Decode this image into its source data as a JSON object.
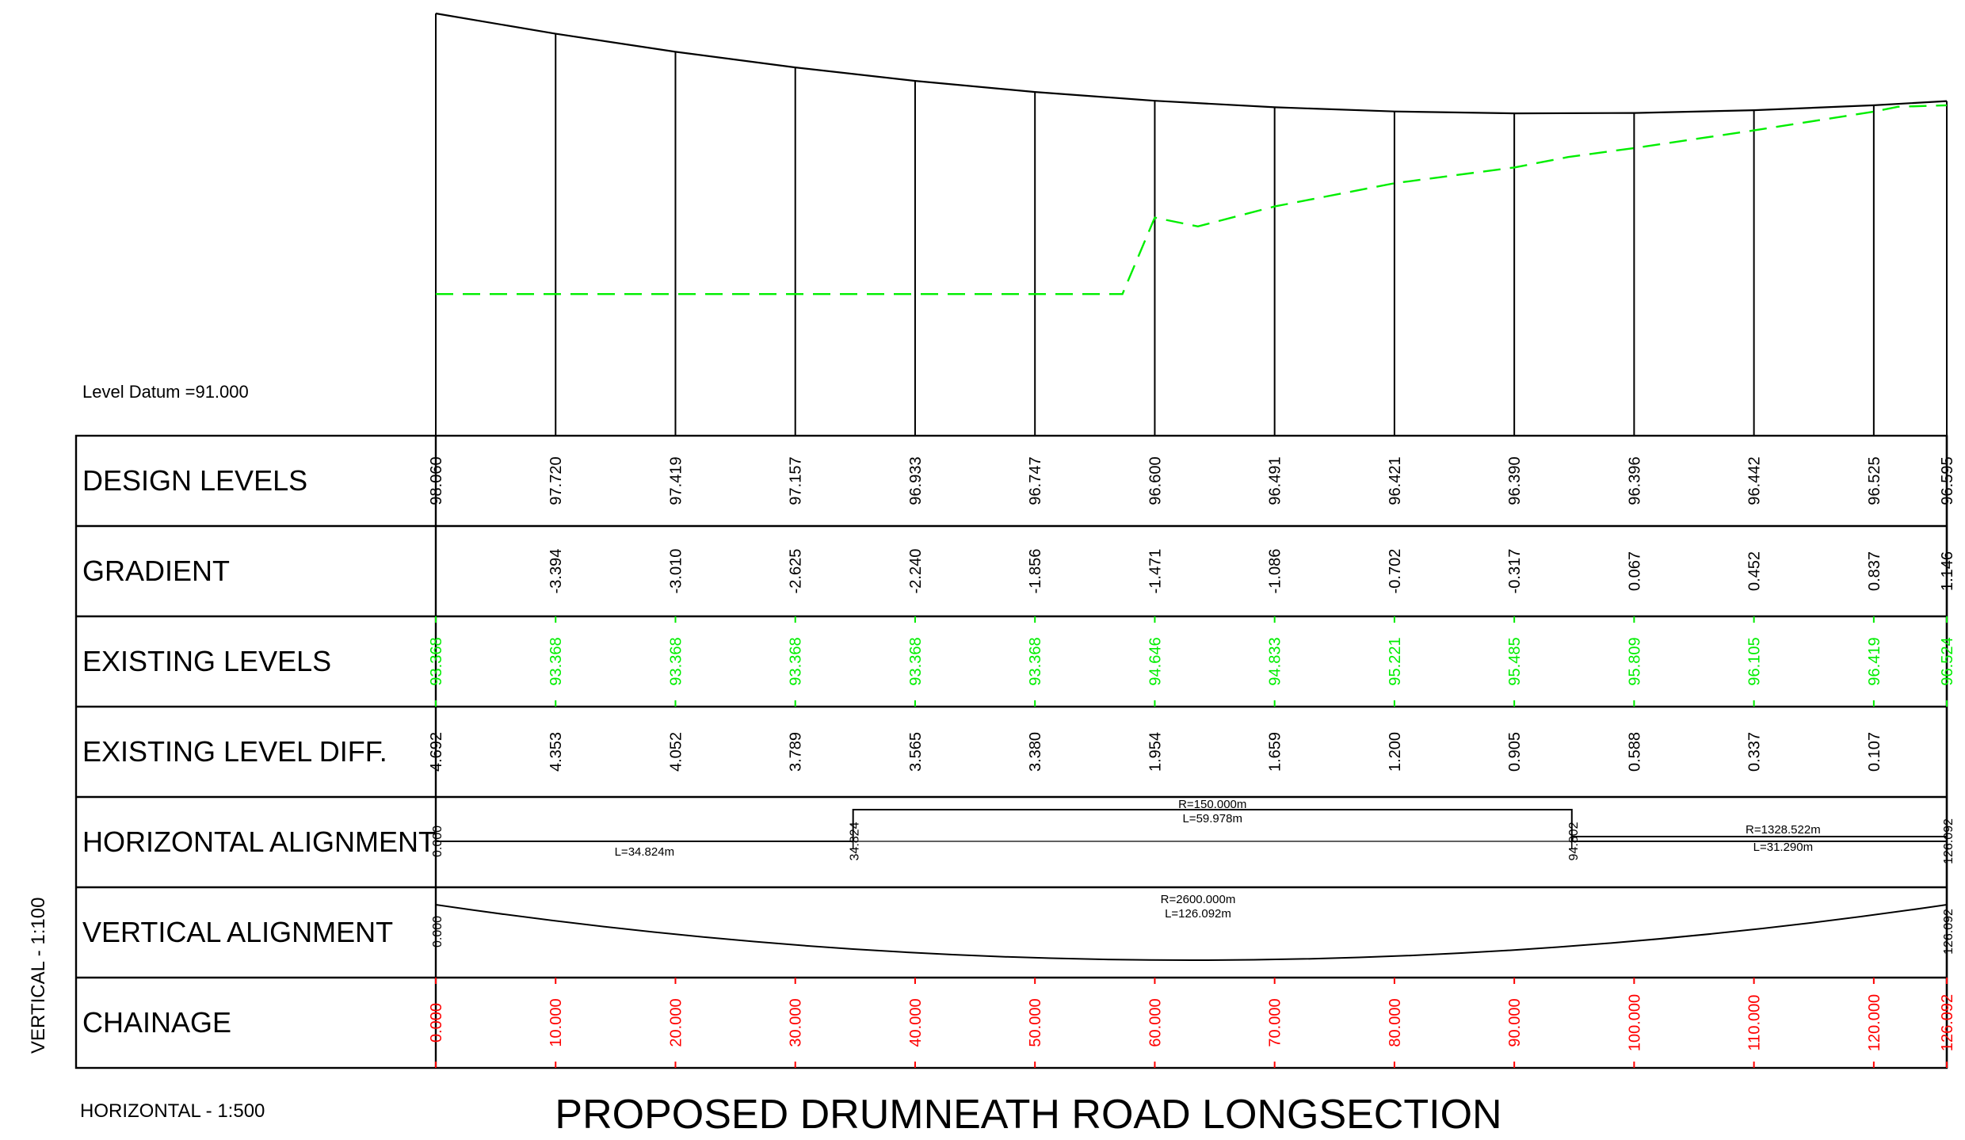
{
  "title": "PROPOSED DRUMNEATH ROAD LONGSECTION",
  "level_datum": "Level Datum =91.000",
  "scale_vertical": "VERTICAL - 1:100",
  "scale_horizontal": "HORIZONTAL - 1:500",
  "colors": {
    "line": "#000000",
    "existing": "#00ee00",
    "chainage": "#ff0000"
  },
  "rows": [
    {
      "key": "design",
      "label": "DESIGN LEVELS"
    },
    {
      "key": "gradient",
      "label": "GRADIENT"
    },
    {
      "key": "existing",
      "label": "EXISTING LEVELS"
    },
    {
      "key": "diff",
      "label": "EXISTING LEVEL DIFF."
    },
    {
      "key": "halign",
      "label": "HORIZONTAL ALIGNMENT"
    },
    {
      "key": "valign",
      "label": "VERTICAL ALIGNMENT"
    },
    {
      "key": "chainage",
      "label": "CHAINAGE"
    }
  ],
  "chart_data": {
    "type": "line",
    "x_range": [
      0,
      126.092
    ],
    "datum": 91.0,
    "chainage": [
      "0.000",
      "10.000",
      "20.000",
      "30.000",
      "40.000",
      "50.000",
      "60.000",
      "70.000",
      "80.000",
      "90.000",
      "100.000",
      "110.000",
      "120.000",
      "126.092"
    ],
    "chainage_values": [
      0,
      10,
      20,
      30,
      40,
      50,
      60,
      70,
      80,
      90,
      100,
      110,
      120,
      126.092
    ],
    "design_levels": [
      "98.060",
      "97.720",
      "97.419",
      "97.157",
      "96.933",
      "96.747",
      "96.600",
      "96.491",
      "96.421",
      "96.390",
      "96.396",
      "96.442",
      "96.525",
      "96.595"
    ],
    "gradient": [
      "",
      "-3.394",
      "-3.010",
      "-2.625",
      "-2.240",
      "-1.856",
      "-1.471",
      "-1.086",
      "-0.702",
      "-0.317",
      "0.067",
      "0.452",
      "0.837",
      "1.146"
    ],
    "existing_levels": [
      "93.368",
      "93.368",
      "93.368",
      "93.368",
      "93.368",
      "93.368",
      "94.646",
      "94.833",
      "95.221",
      "95.485",
      "95.809",
      "96.105",
      "96.419",
      "96.524"
    ],
    "existing_level_diff": [
      "4.692",
      "4.353",
      "4.052",
      "3.789",
      "3.565",
      "3.380",
      "1.954",
      "1.659",
      "1.200",
      "0.905",
      "0.588",
      "0.337",
      "0.107",
      ""
    ],
    "existing_profile": [
      [
        0,
        93.368
      ],
      [
        57.3,
        93.368
      ],
      [
        60,
        94.646
      ],
      [
        63.6,
        94.5
      ],
      [
        70,
        94.833
      ],
      [
        80,
        95.221
      ],
      [
        90,
        95.485
      ],
      [
        94.5,
        95.66
      ],
      [
        100,
        95.809
      ],
      [
        110,
        96.105
      ],
      [
        120,
        96.419
      ],
      [
        122,
        96.5
      ],
      [
        126.092,
        96.524
      ]
    ],
    "horizontal_alignment": {
      "ticks": [
        {
          "ch": 0,
          "label": "0.000"
        },
        {
          "ch": 34.824,
          "label": "34.824"
        },
        {
          "ch": 94.802,
          "label": "94.802"
        },
        {
          "ch": 126.092,
          "label": "126.092"
        }
      ],
      "segments": [
        {
          "from": 0,
          "to": 34.824,
          "type": "straight",
          "text": [
            "L=34.824m"
          ]
        },
        {
          "from": 34.824,
          "to": 94.802,
          "type": "curve",
          "text": [
            "R=150.000m",
            "L=59.978m"
          ]
        },
        {
          "from": 94.802,
          "to": 126.092,
          "type": "curve",
          "text": [
            "R=1328.522m",
            "L=31.290m"
          ]
        }
      ]
    },
    "vertical_alignment": {
      "ticks": [
        {
          "ch": 0,
          "label": "0.000"
        },
        {
          "ch": 126.092,
          "label": "126.092"
        }
      ],
      "text": [
        "R=2600.000m",
        "L=126.092m"
      ]
    }
  }
}
